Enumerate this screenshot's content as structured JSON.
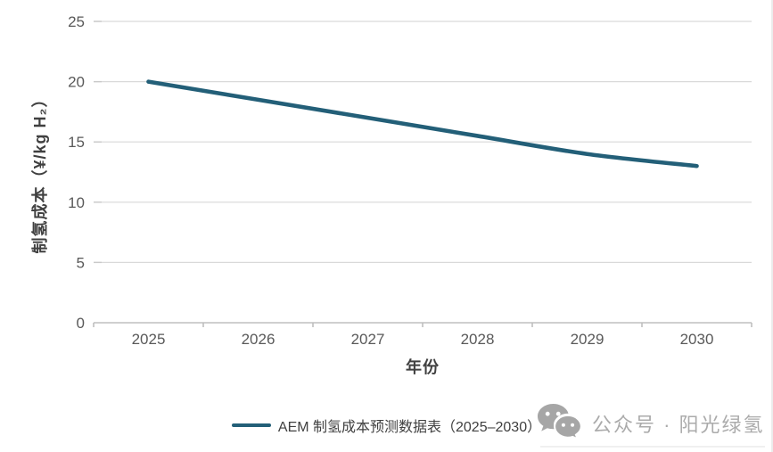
{
  "chart_data": {
    "type": "line",
    "title": "",
    "categories": [
      "2025",
      "2026",
      "2027",
      "2028",
      "2029",
      "2030"
    ],
    "series": [
      {
        "name": "AEM 制氢成本预测数据表（2025–2030）",
        "values": [
          20,
          18.5,
          17,
          15.5,
          14,
          13
        ],
        "color": "#235f78"
      }
    ],
    "xlabel": "年份",
    "ylabel": "制氢成本（¥/kg H₂）",
    "ylim": [
      0,
      25
    ],
    "yticks": [
      0,
      5,
      10,
      15,
      20,
      25
    ],
    "grid": true,
    "legend_position": "bottom"
  },
  "legend": {
    "items": [
      {
        "label": "AEM 制氢成本预测数据表（2025–2030）",
        "color": "#235f78"
      }
    ]
  },
  "watermark": {
    "icon": "wechat-icon",
    "text": "公众号 · 阳光绿氢",
    "color": "#ababab"
  },
  "colors": {
    "background": "#ffffff",
    "gridline": "#d9d9d9",
    "axis_line": "#bfbfbf",
    "tick_label": "#595959",
    "axis_title": "#404040",
    "legend_text": "#404040",
    "series_line": "#235f78",
    "watermark_gray": "#a6a6a6"
  }
}
